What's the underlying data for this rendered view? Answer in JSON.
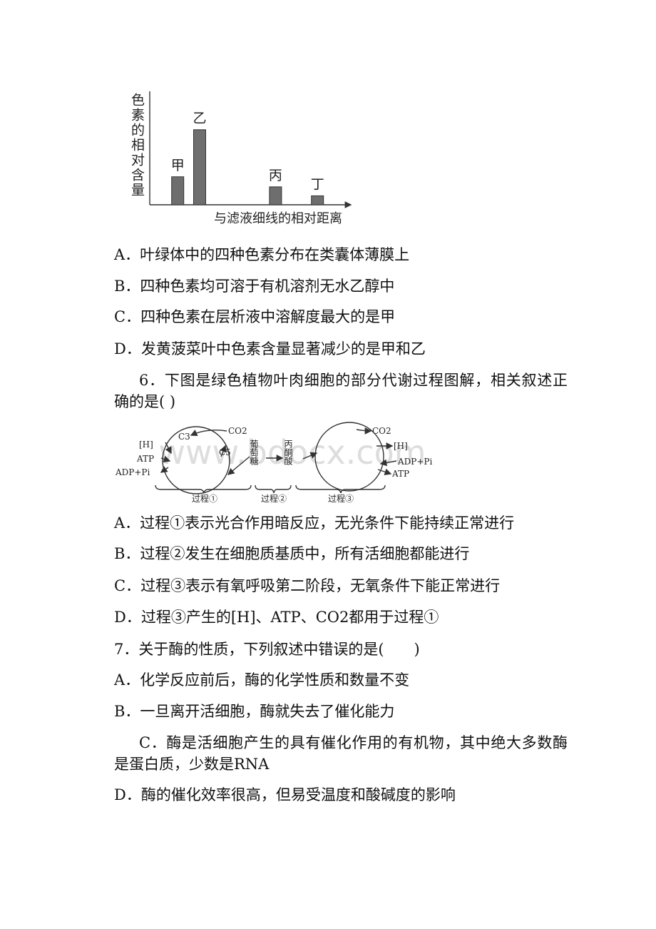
{
  "chart_data": {
    "type": "bar",
    "y_label": "色素的相对含量",
    "x_label": "与滤液细线的相对距离",
    "categories": [
      "甲",
      "乙",
      "丙",
      "丁"
    ],
    "x": [
      14,
      25,
      63,
      84
    ],
    "values": [
      25,
      67,
      16,
      8
    ],
    "xlim": [
      0,
      100
    ],
    "ylim": [
      0,
      100
    ],
    "color": "#6e6e6e"
  },
  "q5": {
    "options": [
      "A．叶绿体中的四种色素分布在类囊体薄膜上",
      "B．四种色素均可溶于有机溶剂无水乙醇中",
      "C．四种色素在层析液中溶解度最大的是甲",
      "D．发黄菠菜叶中色素含量显著减少的是甲和乙"
    ]
  },
  "q6": {
    "stem": "6．下图是绿色植物叶肉细胞的部分代谢过程图解，相关叙述正确的是( )",
    "diagram": {
      "h1": "[H]",
      "atp1": "ATP",
      "adp1": "ADP+Pi",
      "c3": "C3",
      "co2a": "CO2",
      "c5": "C5",
      "glucose": "葡萄糖",
      "pyruvate": "丙酮酸",
      "co2b": "CO2",
      "h2": "[H]",
      "adp2": "ADP+Pi",
      "atp2": "ATP",
      "p1": "过程①",
      "p2": "过程②",
      "p3": "过程③",
      "watermark": "www.bdocx.com"
    },
    "options": [
      "A．过程①表示光合作用暗反应，无光条件下能持续正常进行",
      "B．过程②发生在细胞质基质中，所有活细胞都能进行",
      "C．过程③表示有氧呼吸第二阶段，无氧条件下能正常进行",
      "D．过程③产生的[H]、ATP、CO2都用于过程①"
    ]
  },
  "q7": {
    "stem": "7．关于酶的性质，下列叙述中错误的是(　　)",
    "options": [
      "A．化学反应前后，酶的化学性质和数量不变",
      "B．一旦离开活细胞，酶就失去了催化能力",
      "C．酶是活细胞产生的具有催化作用的有机物，其中绝大多数酶是蛋白质，少数是RNA",
      "D．酶的催化效率很高，但易受温度和酸碱度的影响"
    ]
  }
}
